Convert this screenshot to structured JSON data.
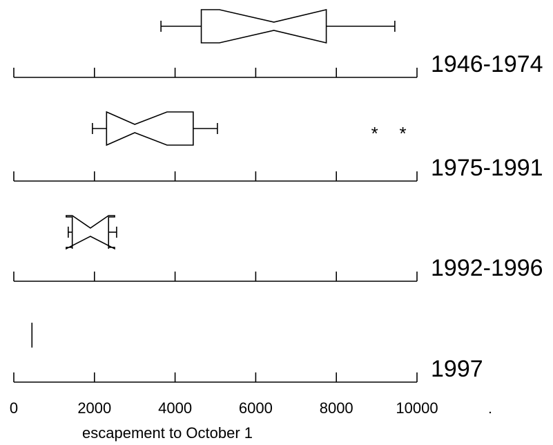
{
  "chart_data": {
    "type": "boxplot",
    "notched": true,
    "orientation": "horizontal",
    "xlabel": "escapement to October 1",
    "xlim": [
      0,
      10000
    ],
    "ticks": [
      0,
      2000,
      4000,
      6000,
      8000,
      10000
    ],
    "tick_labels": [
      "0",
      "2000",
      "4000",
      "6000",
      "8000",
      "10000"
    ],
    "groups": [
      {
        "name": "1946-1974",
        "min": 3650,
        "q1": 4650,
        "median": 6450,
        "q3": 7750,
        "max": 9450,
        "notch_low": 5100,
        "notch_high": 7750,
        "outliers": []
      },
      {
        "name": "1975-1991",
        "min": 1950,
        "q1": 2300,
        "median": 3000,
        "q3": 4450,
        "max": 5050,
        "notch_low": 2300,
        "notch_high": 3800,
        "outliers": [
          8950,
          9650
        ]
      },
      {
        "name": "1992-1996",
        "min": 1350,
        "q1": 1450,
        "median": 1900,
        "q3": 2350,
        "max": 2550,
        "notch_low": 1300,
        "notch_high": 2500,
        "outliers": []
      },
      {
        "name": "1997",
        "min": 450,
        "q1": 450,
        "median": 450,
        "q3": 450,
        "max": 450,
        "notch_low": 450,
        "notch_high": 450,
        "outliers": []
      }
    ]
  }
}
